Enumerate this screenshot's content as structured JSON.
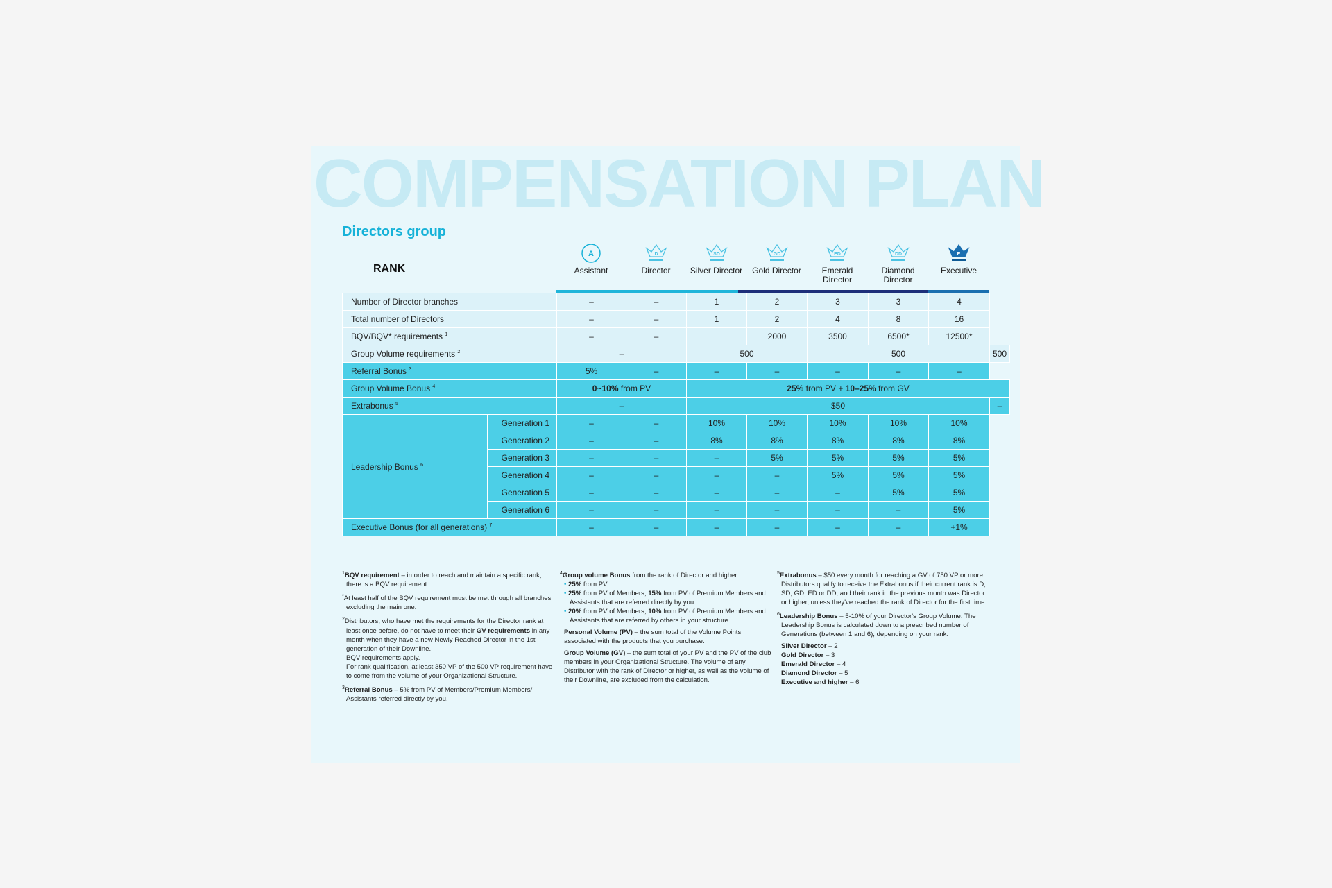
{
  "watermark": "COMPENSATION PLAN",
  "group_title": "Directors group",
  "rank_label": "RANK",
  "colors": {
    "accent": "#17b2d8",
    "row_light": "#dcf2f9",
    "row_cyan": "#4ccfe7",
    "bar_light": "#1fb5da",
    "bar_navy": "#1d2f7a",
    "bar_exec": "#1a6fb0"
  },
  "ranks": [
    {
      "abbr": "A",
      "name": "Assistant",
      "icon": "circle-badge-icon"
    },
    {
      "abbr": "D",
      "name": "Director",
      "icon": "crown-outline-icon"
    },
    {
      "abbr": "SD",
      "name": "Silver Director",
      "icon": "crown-outline-icon"
    },
    {
      "abbr": "GD",
      "name": "Gold Director",
      "icon": "crown-outline-icon"
    },
    {
      "abbr": "ED",
      "name": "Emerald Director",
      "icon": "crown-outline-icon"
    },
    {
      "abbr": "DD",
      "name": "Diamond Director",
      "icon": "crown-outline-icon"
    },
    {
      "abbr": "E",
      "name": "Executive",
      "icon": "crown-filled-icon"
    }
  ],
  "rows": [
    {
      "label": "Number of Director branches",
      "sup": "",
      "values": [
        "–",
        "–",
        "1",
        "2",
        "3",
        "3",
        "4"
      ]
    },
    {
      "label": "Total number of Directors",
      "sup": "",
      "values": [
        "–",
        "–",
        "1",
        "2",
        "4",
        "8",
        "16"
      ]
    },
    {
      "label": "BQV/BQV* requirements",
      "sup": "1",
      "values": [
        "–",
        "–",
        "",
        "2000",
        "3500",
        "6500*",
        "12500*"
      ]
    },
    {
      "label": "Group Volume requirements",
      "sup": "2",
      "values": [
        "–",
        "500",
        "500",
        "500"
      ]
    },
    {
      "label": "Referral Bonus",
      "sup": "3",
      "values": [
        "5%",
        "–",
        "–",
        "–",
        "–",
        "–",
        "–"
      ]
    },
    {
      "label": "Group Volume Bonus",
      "sup": "4",
      "values": [
        "0~10% from PV",
        "25% from PV + 10–25% from GV"
      ]
    },
    {
      "label": "Extrabonus",
      "sup": "5",
      "values": [
        "–",
        "$50",
        "–"
      ]
    }
  ],
  "leadership": {
    "label": "Leadership Bonus",
    "sup": "6",
    "generations": [
      {
        "label": "Generation 1",
        "values": [
          "–",
          "–",
          "10%",
          "10%",
          "10%",
          "10%",
          "10%"
        ]
      },
      {
        "label": "Generation 2",
        "values": [
          "–",
          "–",
          "8%",
          "8%",
          "8%",
          "8%",
          "8%"
        ]
      },
      {
        "label": "Generation 3",
        "values": [
          "–",
          "–",
          "–",
          "5%",
          "5%",
          "5%",
          "5%"
        ]
      },
      {
        "label": "Generation 4",
        "values": [
          "–",
          "–",
          "–",
          "–",
          "5%",
          "5%",
          "5%"
        ]
      },
      {
        "label": "Generation 5",
        "values": [
          "–",
          "–",
          "–",
          "–",
          "–",
          "5%",
          "5%"
        ]
      },
      {
        "label": "Generation 6",
        "values": [
          "–",
          "–",
          "–",
          "–",
          "–",
          "–",
          "5%"
        ]
      }
    ]
  },
  "executive_row": {
    "label": "Executive Bonus (for all generations)",
    "sup": "7",
    "values": [
      "–",
      "–",
      "–",
      "–",
      "–",
      "–",
      "+1%"
    ]
  },
  "notes": {
    "n1": {
      "sup": "1",
      "bold": "BQV requirement",
      "text": " – in order to reach and maintain a specific rank, there is a BQV requirement."
    },
    "n1b": {
      "sup": "*",
      "text": "At least half of the BQV requirement must be met through all branches excluding the main one."
    },
    "n2": {
      "sup": "2",
      "t1": "Distributors, who have met the requirements for the Director rank at least once before, do not have to meet their ",
      "bold": "GV requirements",
      "t2": " in any month when they have a new Newly Reached Director in the 1st generation of their Downline.",
      "t3": "BQV requirements apply.",
      "t4": "For rank qualification, at least 350 VP of the 500 VP requirement have to come from the volume of your Organizational Structure."
    },
    "n3": {
      "sup": "3",
      "bold": "Referral Bonus",
      "text": " – 5% from PV of Members/Premium Members/ Assistants referred directly by you."
    },
    "n4": {
      "sup": "4",
      "bold": "Group volume Bonus",
      "text": " from the rank of Director and higher:",
      "b1": {
        "bold": "25%",
        "text": " from PV"
      },
      "b2": {
        "bold": "25%",
        "t1": " from PV of Members, ",
        "bold2": "15%",
        "t2": " from PV of Premium Members and Assistants that are referred directly by you"
      },
      "b3": {
        "bold": "20%",
        "t1": " from PV of Members, ",
        "bold2": "10%",
        "t2": " from PV of Premium Members and Assistants that are referred by others in your structure"
      }
    },
    "pv": {
      "bold": "Personal Volume (PV)",
      "text": " – the sum total of the Volume Points associated with the products that you purchase."
    },
    "gv": {
      "bold": "Group Volume (GV)",
      "text": " – the sum total of your PV and the PV of the club members in your Organizational Structure. The volume of any Distributor with the rank of Director or higher, as well as the volume of their Downline, are excluded from the calculation."
    },
    "n5": {
      "sup": "5",
      "bold": "Extrabonus",
      "text": " – $50 every month for reaching a GV of 750 VP or more. Distributors qualify to receive the Extrabonus if their current rank is D, SD, GD, ED or DD; and their rank in the previous month was Director or higher, unless they've reached the rank of Director for the first time."
    },
    "n6": {
      "sup": "6",
      "bold": "Leadership Bonus",
      "text": " – 5-10% of your Director's Group Volume. The Leadership Bonus is calculated down to a prescribed number of Generations (between 1 and 6), depending on your rank:"
    },
    "gens": [
      {
        "bold": "Silver Director",
        "text": " – 2"
      },
      {
        "bold": "Gold Director",
        "text": " – 3"
      },
      {
        "bold": "Emerald Director",
        "text": " – 4"
      },
      {
        "bold": "Diamond Director",
        "text": " – 5"
      },
      {
        "bold": "Executive and higher",
        "text": " – 6"
      }
    ]
  }
}
